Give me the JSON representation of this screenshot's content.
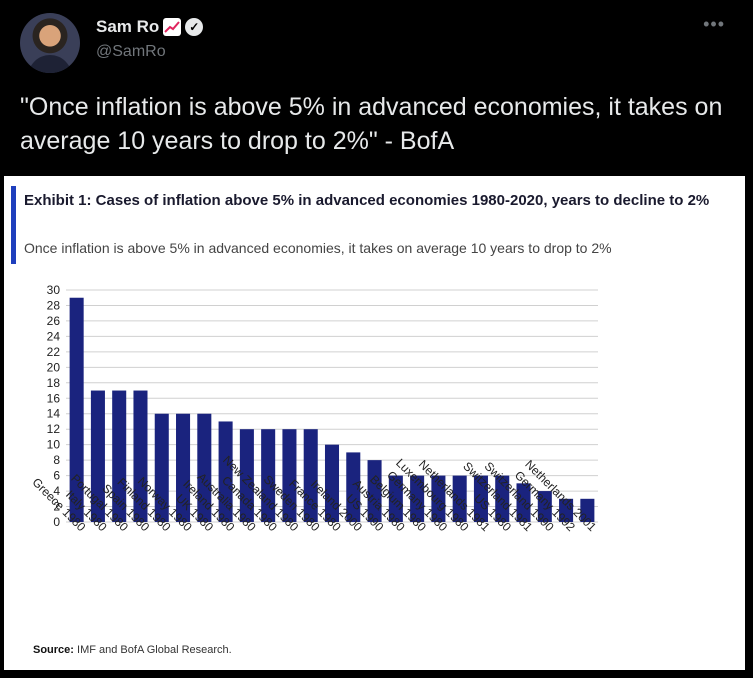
{
  "tweet": {
    "author_name": "Sam Ro",
    "handle": "@SamRo",
    "more_icon": "more-icon",
    "text": "\"Once inflation is above 5% in advanced economies, it takes on average 10 years to drop to 2%\" - BofA"
  },
  "exhibit": {
    "title": "Exhibit 1: Cases of inflation above 5% in advanced economies 1980-2020, years to decline to 2%",
    "subtitle": "Once inflation is above 5% in advanced economies, it takes on average 10 years to drop to 2%",
    "source_label": "Source:",
    "source_text": "IMF and BofA Global Research."
  },
  "colors": {
    "bar": "#1a237e",
    "accent": "#1f3fbd"
  },
  "chart_data": {
    "type": "bar",
    "categories": [
      "Greece 1980",
      "Italy 1980",
      "Portugal 1980",
      "Spain 1980",
      "Finland 1980",
      "Norway 1980",
      "UK 1980",
      "Ireland 1980",
      "Australia 1980",
      "Canada 1980",
      "New Zealand 1980",
      "Sweden 1980",
      "France 1980",
      "Ireland 2000",
      "US 1990",
      "Austria 1980",
      "Belgium 1980",
      "Germany 1980",
      "Luxembourg 1980",
      "Netherlands 1981",
      "US 1980",
      "Switzerland 1981",
      "Switzerland 1990",
      "Germany 1992",
      "Netherlands 2001"
    ],
    "values": [
      29,
      17,
      17,
      17,
      14,
      14,
      14,
      13,
      12,
      12,
      12,
      12,
      10,
      9,
      8,
      6,
      6,
      6,
      6,
      6,
      6,
      5,
      4,
      3,
      3
    ],
    "ylim": [
      0,
      30
    ],
    "yticks": [
      0,
      2,
      4,
      6,
      8,
      10,
      12,
      14,
      16,
      18,
      20,
      22,
      24,
      26,
      28,
      30
    ],
    "grid": true
  }
}
